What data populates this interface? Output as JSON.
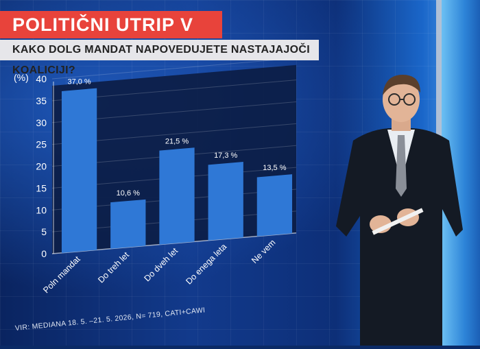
{
  "header": {
    "title": "POLITIČNI UTRIP V DRŽAVI",
    "question": "KAKO DOLG MANDAT NAPOVEDUJETE NASTAJAJOČI KOALICIJI?"
  },
  "source": "VIR: MEDIANA 18. 5. –21. 5. 2026, N= 719, CATI+CAWI",
  "chart_data": {
    "type": "bar",
    "title": "",
    "ylabel": "(%)",
    "xlabel": "",
    "ylim": [
      0,
      40
    ],
    "yticks": [
      0,
      5,
      10,
      15,
      20,
      25,
      30,
      35,
      40
    ],
    "categories": [
      "Poln mandat",
      "Do treh let",
      "Do dveh let",
      "Do enega leta",
      "Ne vem"
    ],
    "values": [
      37.0,
      10.6,
      21.5,
      17.3,
      13.5
    ],
    "value_labels": [
      "37,0 %",
      "10,6 %",
      "21,5 %",
      "17,3 %",
      "13,5 %"
    ],
    "grid": true,
    "bar_color": "#2f78d6"
  },
  "colors": {
    "title_bg": "#e8433b",
    "question_bg": "#e6e6ea",
    "plot_bg": "#0c1d45"
  }
}
